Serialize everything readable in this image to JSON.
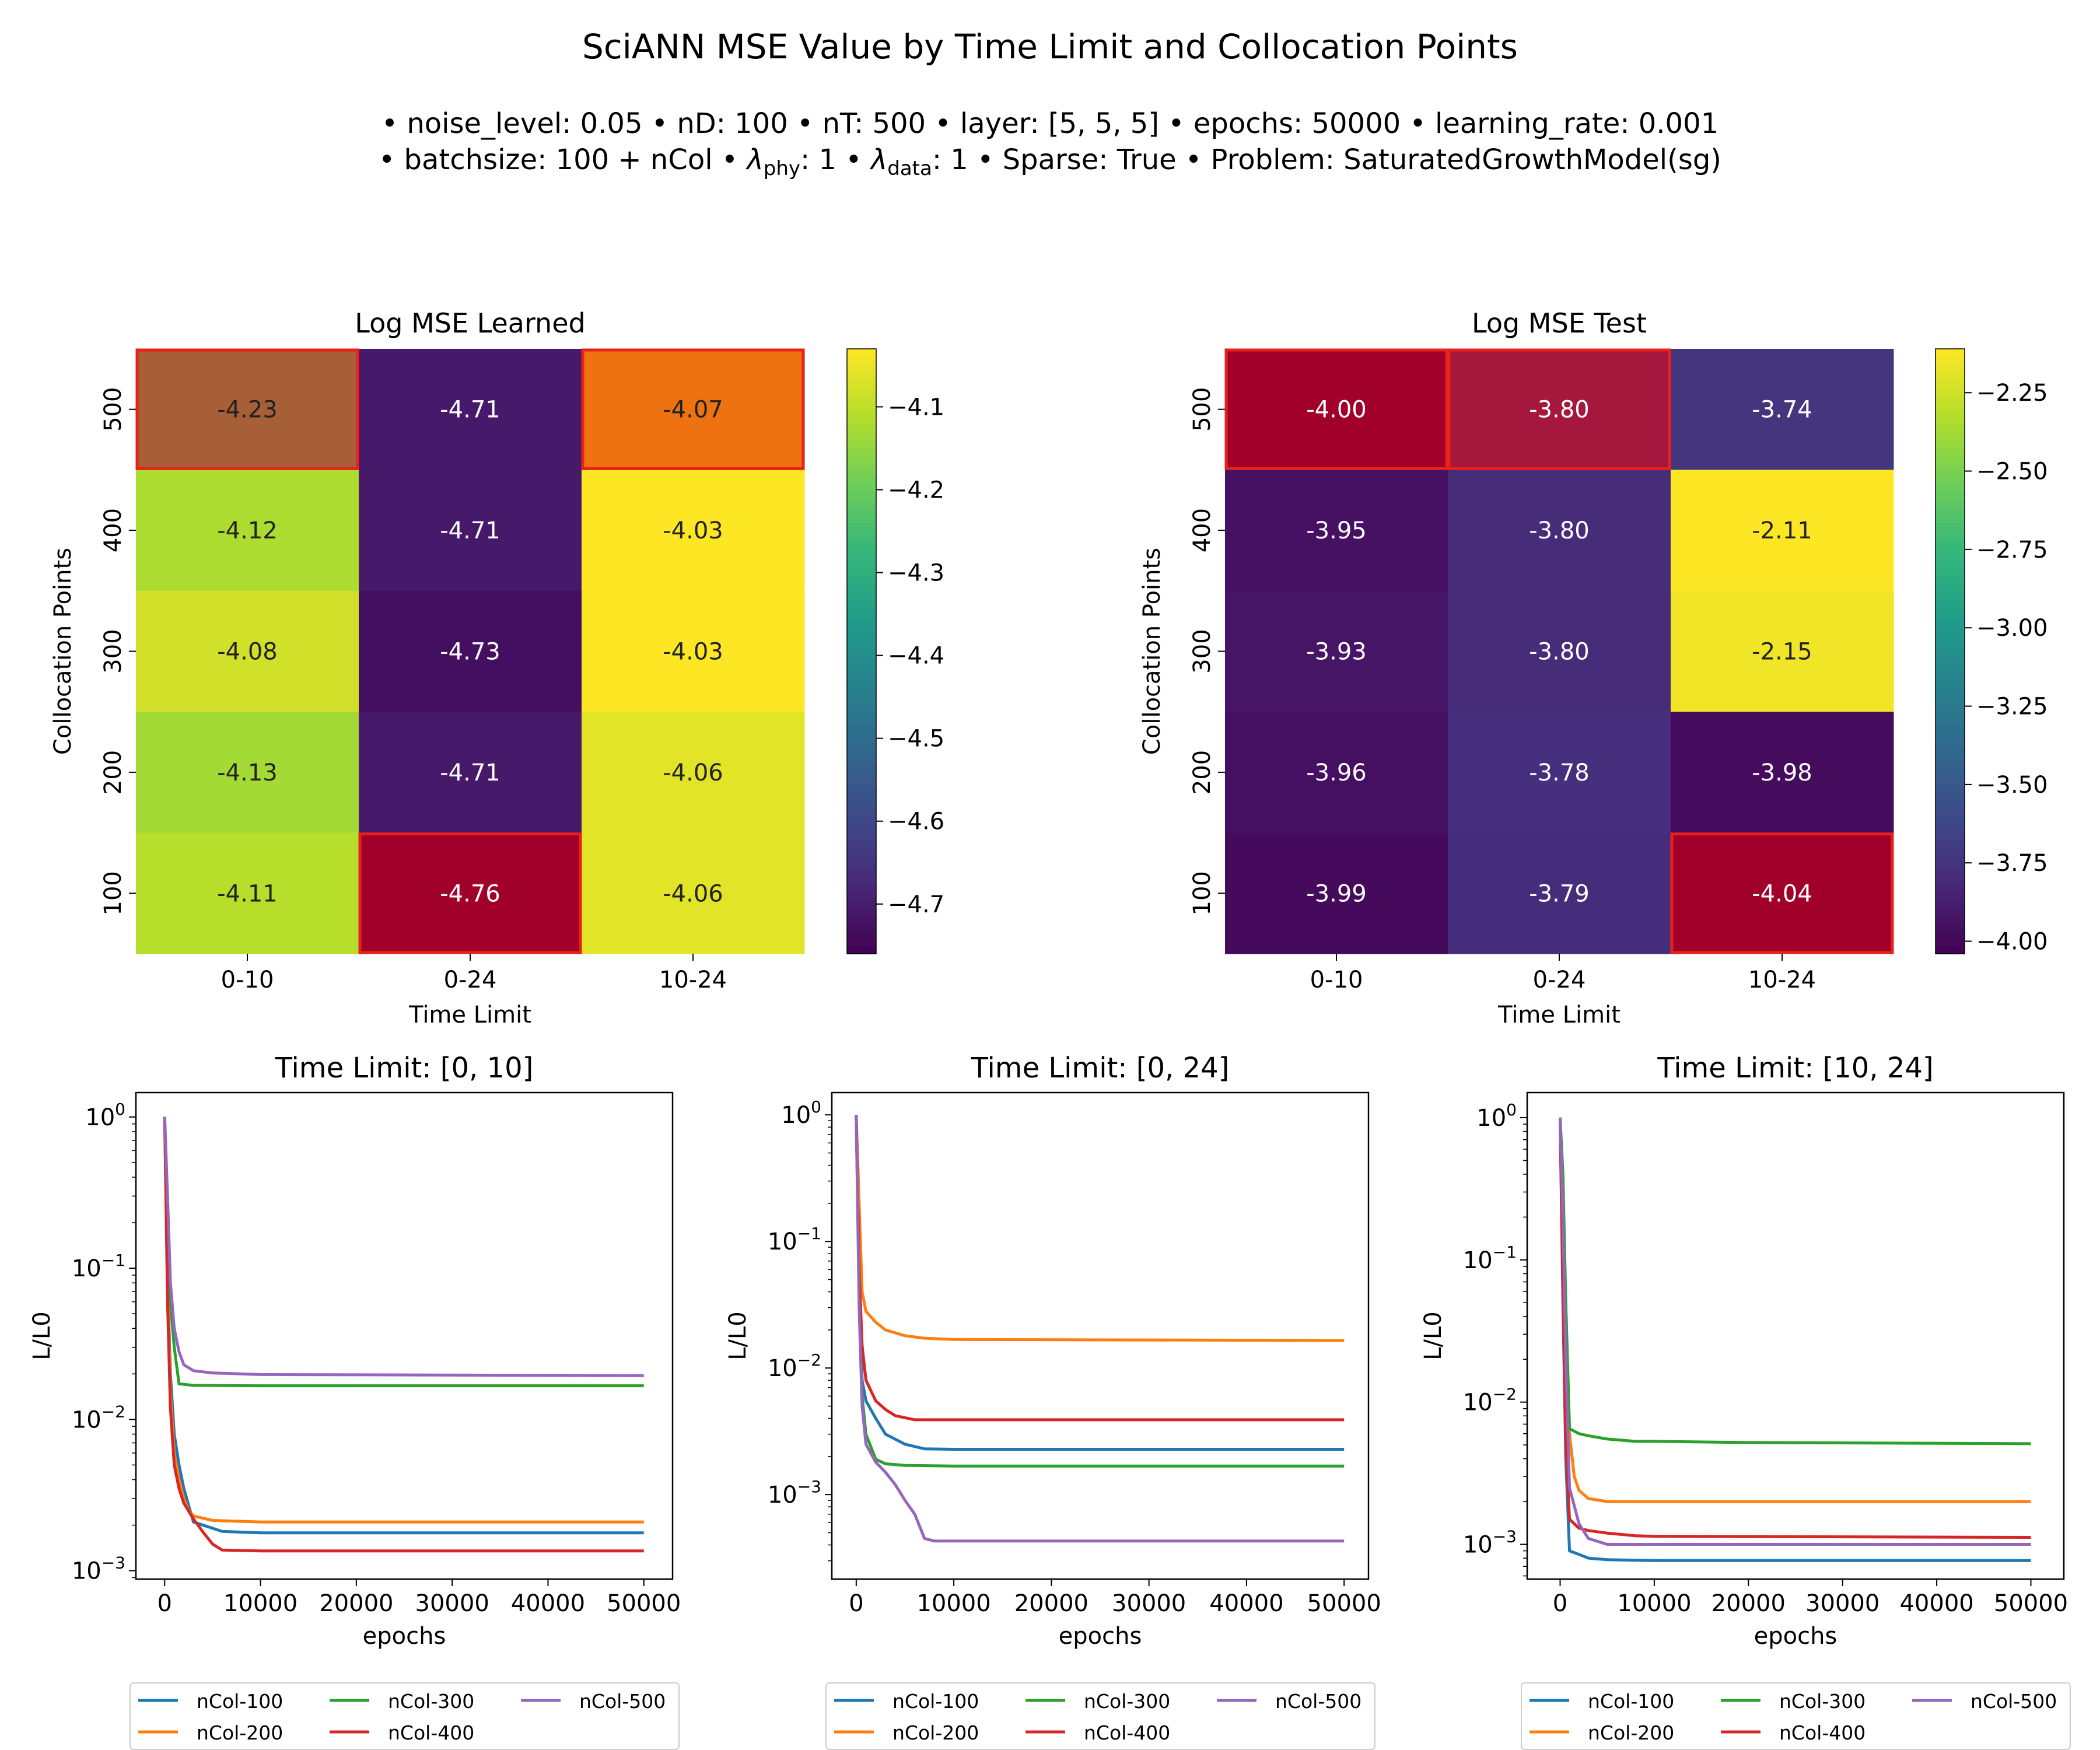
{
  "figure": {
    "title": "SciANN MSE Value by Time Limit and Collocation Points",
    "subtitle_line1": "• noise_level: 0.05 • nD: 100 • nT: 500 • layer: [5, 5, 5] • epochs: 50000 • learning_rate: 0.001",
    "subtitle_line2_a": "• batchsize: 100 + nCol • ",
    "subtitle_line2_b": ": 1 • ",
    "subtitle_line2_c": ": 1 • Sparse: True • Problem: SaturatedGrowthModel(sg)",
    "lambda_symbol": "λ",
    "lambda_phy_sub": "phy",
    "lambda_data_sub": "data"
  },
  "colors": {
    "nCol-100": "#1f77b4",
    "nCol-200": "#ff7f0e",
    "nCol-300": "#2ca02c",
    "nCol-400": "#d62728",
    "nCol-500": "#9467bd",
    "highlight": "#e8211b"
  },
  "chart_data": [
    {
      "type": "heatmap",
      "title": "Log MSE Learned",
      "xlabel": "Time Limit",
      "ylabel": "Collocation Points",
      "x_categories": [
        "0-10",
        "0-24",
        "10-24"
      ],
      "y_categories": [
        "500",
        "400",
        "300",
        "200",
        "100"
      ],
      "values": [
        [
          -4.23,
          -4.71,
          -4.07
        ],
        [
          -4.12,
          -4.71,
          -4.03
        ],
        [
          -4.08,
          -4.73,
          -4.03
        ],
        [
          -4.13,
          -4.71,
          -4.06
        ],
        [
          -4.11,
          -4.76,
          -4.06
        ]
      ],
      "value_labels": [
        [
          "-4.23",
          "-4.71",
          "-4.07"
        ],
        [
          "-4.12",
          "-4.71",
          "-4.03"
        ],
        [
          "-4.08",
          "-4.73",
          "-4.03"
        ],
        [
          "-4.13",
          "-4.71",
          "-4.06"
        ],
        [
          "-4.11",
          "-4.76",
          "-4.06"
        ]
      ],
      "highlighted_cells": [
        [
          0,
          0
        ],
        [
          4,
          1
        ],
        [
          0,
          2
        ]
      ],
      "highlight_colors": {
        "0,0": "#a65f36",
        "4,1": "#a0002a",
        "0,2": "#ee720f"
      },
      "colormap": "viridis",
      "colorbar_range": [
        -4.76,
        -4.03
      ],
      "colorbar_ticks": [
        -4.7,
        -4.6,
        -4.5,
        -4.4,
        -4.3,
        -4.2,
        -4.1
      ],
      "colorbar_tick_labels": [
        "−4.7",
        "−4.6",
        "−4.5",
        "−4.4",
        "−4.3",
        "−4.2",
        "−4.1"
      ]
    },
    {
      "type": "heatmap",
      "title": "Log MSE Test",
      "xlabel": "Time Limit",
      "ylabel": "Collocation Points",
      "x_categories": [
        "0-10",
        "0-24",
        "10-24"
      ],
      "y_categories": [
        "500",
        "400",
        "300",
        "200",
        "100"
      ],
      "values": [
        [
          -4.0,
          -3.8,
          -3.74
        ],
        [
          -3.95,
          -3.8,
          -2.11
        ],
        [
          -3.93,
          -3.8,
          -2.15
        ],
        [
          -3.96,
          -3.78,
          -3.98
        ],
        [
          -3.99,
          -3.79,
          -4.04
        ]
      ],
      "value_labels": [
        [
          "-4.00",
          "-3.80",
          "-3.74"
        ],
        [
          "-3.95",
          "-3.80",
          "-2.11"
        ],
        [
          "-3.93",
          "-3.80",
          "-2.15"
        ],
        [
          "-3.96",
          "-3.78",
          "-3.98"
        ],
        [
          "-3.99",
          "-3.79",
          "-4.04"
        ]
      ],
      "highlighted_cells": [
        [
          0,
          0
        ],
        [
          0,
          1
        ],
        [
          4,
          2
        ]
      ],
      "highlight_colors": {
        "0,0": "#a0002a",
        "0,1": "#a5173d",
        "4,2": "#a0002a"
      },
      "colormap": "viridis",
      "colorbar_range": [
        -4.04,
        -2.11
      ],
      "colorbar_ticks": [
        -4.0,
        -3.75,
        -3.5,
        -3.25,
        -3.0,
        -2.75,
        -2.5,
        -2.25
      ],
      "colorbar_tick_labels": [
        "−4.00",
        "−3.75",
        "−3.50",
        "−3.25",
        "−3.00",
        "−2.75",
        "−2.50",
        "−2.25"
      ]
    },
    {
      "type": "line",
      "title": "Time Limit: [0, 10]",
      "xlabel": "epochs",
      "ylabel": "L/L0",
      "yscale": "log",
      "xlim": [
        -3000,
        53000
      ],
      "ylim": [
        0.00088,
        1.45
      ],
      "xticks": [
        0,
        10000,
        20000,
        30000,
        40000,
        50000
      ],
      "yticks": [
        0.001,
        0.01,
        0.1,
        1
      ],
      "ytick_exponents": [
        "−3",
        "−2",
        "−1",
        "0"
      ],
      "ytick_base": "10",
      "legend": [
        "nCol-100",
        "nCol-200",
        "nCol-300",
        "nCol-400",
        "nCol-500"
      ],
      "legend_position": "below",
      "series": [
        {
          "name": "nCol-100",
          "x": [
            0,
            300,
            600,
            1000,
            1500,
            2000,
            2500,
            3000,
            6000,
            10000,
            50000
          ],
          "y": [
            1.0,
            0.09,
            0.02,
            0.008,
            0.005,
            0.0035,
            0.0027,
            0.0021,
            0.00182,
            0.00178,
            0.00178
          ]
        },
        {
          "name": "nCol-200",
          "x": [
            0,
            300,
            600,
            1000,
            1500,
            2000,
            2500,
            3000,
            5000,
            10000,
            50000
          ],
          "y": [
            1.0,
            0.08,
            0.015,
            0.006,
            0.004,
            0.003,
            0.0025,
            0.0023,
            0.00215,
            0.0021,
            0.0021
          ]
        },
        {
          "name": "nCol-300",
          "x": [
            0,
            300,
            600,
            1000,
            1500,
            3000,
            10000,
            50000
          ],
          "y": [
            1.0,
            0.25,
            0.06,
            0.03,
            0.0172,
            0.0168,
            0.0167,
            0.0167
          ]
        },
        {
          "name": "nCol-400",
          "x": [
            0,
            300,
            600,
            1000,
            1500,
            2000,
            3000,
            4000,
            5000,
            6000,
            10000,
            50000
          ],
          "y": [
            1.0,
            0.06,
            0.012,
            0.005,
            0.0035,
            0.0028,
            0.0022,
            0.0018,
            0.0015,
            0.00137,
            0.00135,
            0.00135
          ]
        },
        {
          "name": "nCol-500",
          "x": [
            0,
            300,
            600,
            1000,
            1500,
            2000,
            3000,
            5000,
            10000,
            50000
          ],
          "y": [
            1.0,
            0.3,
            0.08,
            0.04,
            0.028,
            0.023,
            0.021,
            0.0203,
            0.0198,
            0.0195
          ]
        }
      ]
    },
    {
      "type": "line",
      "title": "Time Limit: [0, 24]",
      "xlabel": "epochs",
      "ylabel": "L/L0",
      "yscale": "log",
      "xlim": [
        -2500,
        52500
      ],
      "ylim": [
        0.000215,
        1.5
      ],
      "xticks": [
        0,
        10000,
        20000,
        30000,
        40000,
        50000
      ],
      "yticks": [
        0.001,
        0.01,
        0.1,
        1
      ],
      "ytick_exponents": [
        "−3",
        "−2",
        "−1",
        "0"
      ],
      "ytick_base": "10",
      "legend": [
        "nCol-100",
        "nCol-200",
        "nCol-300",
        "nCol-400",
        "nCol-500"
      ],
      "legend_position": "below",
      "series": [
        {
          "name": "nCol-100",
          "x": [
            0,
            300,
            600,
            1000,
            2000,
            3000,
            5000,
            7000,
            10000,
            50000
          ],
          "y": [
            1.0,
            0.05,
            0.008,
            0.0055,
            0.004,
            0.003,
            0.0025,
            0.0023,
            0.00228,
            0.00228
          ]
        },
        {
          "name": "nCol-200",
          "x": [
            0,
            300,
            600,
            1000,
            2000,
            3000,
            5000,
            7000,
            10000,
            50000
          ],
          "y": [
            1.0,
            0.2,
            0.04,
            0.028,
            0.023,
            0.02,
            0.018,
            0.0172,
            0.0168,
            0.0165
          ]
        },
        {
          "name": "nCol-300",
          "x": [
            0,
            300,
            600,
            1000,
            2000,
            3000,
            5000,
            10000,
            50000
          ],
          "y": [
            1.0,
            0.04,
            0.006,
            0.003,
            0.0019,
            0.00175,
            0.0017,
            0.00168,
            0.00168
          ]
        },
        {
          "name": "nCol-400",
          "x": [
            0,
            300,
            600,
            1000,
            2000,
            3000,
            4000,
            6000,
            10000,
            50000
          ],
          "y": [
            1.0,
            0.06,
            0.015,
            0.008,
            0.0055,
            0.0047,
            0.0042,
            0.0039,
            0.0039,
            0.0039
          ]
        },
        {
          "name": "nCol-500",
          "x": [
            0,
            300,
            600,
            1000,
            2000,
            3000,
            4000,
            5000,
            6000,
            7000,
            8000,
            10000,
            50000
          ],
          "y": [
            1.0,
            0.03,
            0.005,
            0.0025,
            0.0018,
            0.0015,
            0.0012,
            0.0009,
            0.0007,
            0.00045,
            0.00043,
            0.00043,
            0.00043
          ]
        }
      ]
    },
    {
      "type": "line",
      "title": "Time Limit: [10, 24]",
      "xlabel": "epochs",
      "ylabel": "L/L0",
      "yscale": "log",
      "xlim": [
        -3500,
        53500
      ],
      "ylim": [
        0.00057,
        1.5
      ],
      "xticks": [
        0,
        10000,
        20000,
        30000,
        40000,
        50000
      ],
      "yticks": [
        0.001,
        0.01,
        0.1,
        1
      ],
      "ytick_exponents": [
        "−3",
        "−2",
        "−1",
        "0"
      ],
      "ytick_base": "10",
      "legend": [
        "nCol-100",
        "nCol-200",
        "nCol-300",
        "nCol-400",
        "nCol-500"
      ],
      "legend_position": "below",
      "series": [
        {
          "name": "nCol-100",
          "x": [
            0,
            300,
            600,
            1000,
            2000,
            3000,
            5000,
            10000,
            50000
          ],
          "y": [
            1.0,
            0.05,
            0.004,
            0.0009,
            0.00085,
            0.0008,
            0.00078,
            0.00077,
            0.00077
          ]
        },
        {
          "name": "nCol-200",
          "x": [
            0,
            300,
            600,
            1000,
            1500,
            2000,
            3000,
            5000,
            10000,
            50000
          ],
          "y": [
            1.0,
            0.1,
            0.02,
            0.006,
            0.003,
            0.0024,
            0.0021,
            0.002,
            0.002,
            0.002
          ]
        },
        {
          "name": "nCol-300",
          "x": [
            0,
            300,
            600,
            1000,
            2000,
            3000,
            5000,
            8000,
            10000,
            20000,
            50000
          ],
          "y": [
            1.0,
            0.4,
            0.05,
            0.0065,
            0.006,
            0.0058,
            0.0055,
            0.0053,
            0.0053,
            0.0052,
            0.0051
          ]
        },
        {
          "name": "nCol-400",
          "x": [
            0,
            300,
            600,
            1000,
            2000,
            3000,
            5000,
            8000,
            10000,
            50000
          ],
          "y": [
            1.0,
            0.06,
            0.005,
            0.0015,
            0.0013,
            0.00125,
            0.0012,
            0.00115,
            0.00114,
            0.00112
          ]
        },
        {
          "name": "nCol-500",
          "x": [
            0,
            300,
            600,
            1000,
            2000,
            3000,
            5000,
            10000,
            50000
          ],
          "y": [
            1.0,
            0.2,
            0.02,
            0.0025,
            0.0014,
            0.0011,
            0.001,
            0.001,
            0.001
          ]
        }
      ]
    }
  ]
}
